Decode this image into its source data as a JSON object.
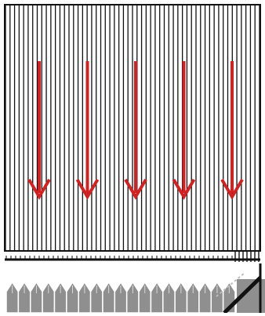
{
  "diagram": {
    "background_color": "#ffffff",
    "line_color": "#111111",
    "arrow_color": "#d32020",
    "comb_color": "#8f8f8f",
    "vertical_line_count": 56,
    "arrow_count": 5,
    "arrow_direction": "down",
    "comb_tooth_count": 19
  }
}
